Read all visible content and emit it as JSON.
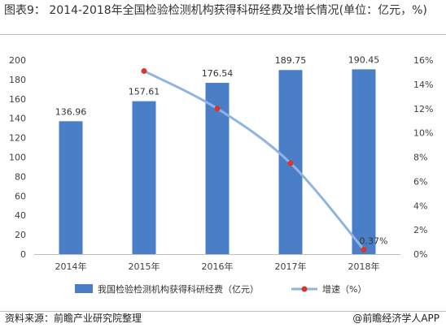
{
  "title": "图表9：  2014-2018年全国检验检测机构获得科研经费及增长情况(单位：亿元，%)",
  "source": "资料来源：前瞻产业研究院整理",
  "brand": "@前瞻经济学人APP",
  "colors": {
    "bar": "#4a7fc8",
    "line": "#8fb4e3",
    "marker": "#d9362f"
  },
  "chart_data": {
    "type": "bar",
    "categories": [
      "2014年",
      "2015年",
      "2016年",
      "2017年",
      "2018年"
    ],
    "series": [
      {
        "name": "我国检验检测机构获得科研经费（亿元）",
        "type": "bar",
        "axis": "left",
        "values": [
          136.96,
          157.61,
          176.54,
          189.75,
          190.45
        ],
        "labels": [
          "136.96",
          "157.61",
          "176.54",
          "189.75",
          "190.45"
        ]
      },
      {
        "name": "增速（%）",
        "type": "line",
        "axis": "right",
        "values": [
          null,
          15.1,
          12.0,
          7.5,
          0.37
        ],
        "labels": [
          "",
          "",
          "",
          "",
          "0.37%"
        ]
      }
    ],
    "ylim": [
      0,
      200
    ],
    "yticks": [
      "0",
      "20",
      "40",
      "60",
      "80",
      "100",
      "120",
      "140",
      "160",
      "180",
      "200"
    ],
    "y2lim": [
      0,
      16
    ],
    "y2ticks": [
      "0%",
      "2%",
      "4%",
      "6%",
      "8%",
      "10%",
      "12%",
      "14%",
      "16%"
    ],
    "grid": false,
    "legend": "bottom"
  }
}
